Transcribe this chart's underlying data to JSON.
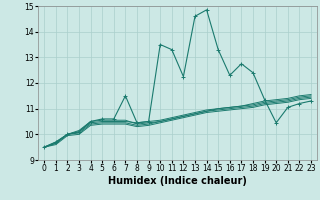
{
  "xlabel": "Humidex (Indice chaleur)",
  "xlim": [
    -0.5,
    23.5
  ],
  "ylim": [
    9,
    15
  ],
  "xticks": [
    0,
    1,
    2,
    3,
    4,
    5,
    6,
    7,
    8,
    9,
    10,
    11,
    12,
    13,
    14,
    15,
    16,
    17,
    18,
    19,
    20,
    21,
    22,
    23
  ],
  "yticks": [
    9,
    10,
    11,
    12,
    13,
    14,
    15
  ],
  "background_color": "#cce8e5",
  "grid_color": "#aacfcc",
  "line_color": "#1a7a6e",
  "lines": [
    [
      9.5,
      9.7,
      10.0,
      10.1,
      10.5,
      10.6,
      10.6,
      11.5,
      10.45,
      10.5,
      13.5,
      13.3,
      12.25,
      14.6,
      14.85,
      13.3,
      12.3,
      12.75,
      12.4,
      11.35,
      10.45,
      11.05,
      11.2,
      11.3
    ],
    [
      9.5,
      9.7,
      10.0,
      10.15,
      10.5,
      10.55,
      10.55,
      10.55,
      10.4,
      10.45,
      10.5,
      10.6,
      10.7,
      10.8,
      10.9,
      11.0,
      11.05,
      11.1,
      11.2,
      11.3,
      11.35,
      11.4,
      11.5,
      11.55
    ],
    [
      9.5,
      9.65,
      10.0,
      10.1,
      10.45,
      10.5,
      10.5,
      10.5,
      10.45,
      10.5,
      10.55,
      10.65,
      10.75,
      10.85,
      10.95,
      11.0,
      11.05,
      11.1,
      11.15,
      11.25,
      11.3,
      11.35,
      11.45,
      11.5
    ],
    [
      9.5,
      9.65,
      10.0,
      10.05,
      10.4,
      10.45,
      10.45,
      10.45,
      10.35,
      10.4,
      10.5,
      10.6,
      10.7,
      10.8,
      10.9,
      10.95,
      11.0,
      11.05,
      11.1,
      11.2,
      11.25,
      11.3,
      11.4,
      11.45
    ],
    [
      9.5,
      9.6,
      9.95,
      10.0,
      10.35,
      10.4,
      10.4,
      10.4,
      10.3,
      10.35,
      10.45,
      10.55,
      10.65,
      10.75,
      10.85,
      10.9,
      10.95,
      11.0,
      11.05,
      11.15,
      11.2,
      11.25,
      11.35,
      11.4
    ]
  ],
  "marker_line_idx": 0,
  "tick_fontsize": 5.5,
  "xlabel_fontsize": 7.0
}
